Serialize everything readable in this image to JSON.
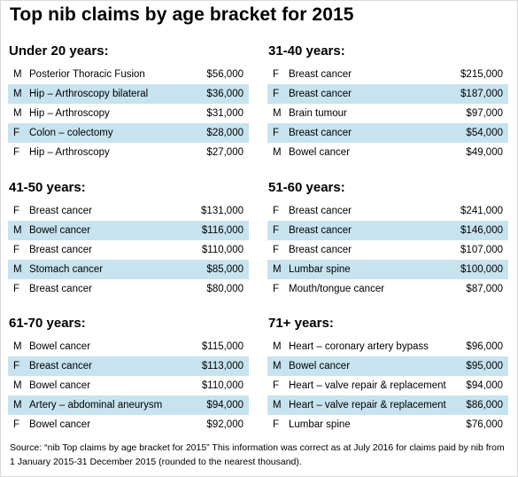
{
  "title": "Top nib claims by age bracket for 2015",
  "brackets": [
    {
      "label": "Under 20 years:",
      "rows": [
        {
          "gender": "M",
          "procedure": "Posterior Thoracic Fusion",
          "amount": "$56,000"
        },
        {
          "gender": "M",
          "procedure": "Hip – Arthroscopy  bilateral",
          "amount": "$36,000"
        },
        {
          "gender": "M",
          "procedure": "Hip – Arthroscopy",
          "amount": "$31,000"
        },
        {
          "gender": "F",
          "procedure": "Colon – colectomy",
          "amount": "$28,000"
        },
        {
          "gender": "F",
          "procedure": "Hip – Arthroscopy",
          "amount": "$27,000"
        }
      ]
    },
    {
      "label": "31-40 years:",
      "rows": [
        {
          "gender": "F",
          "procedure": "Breast cancer",
          "amount": "$215,000"
        },
        {
          "gender": "F",
          "procedure": "Breast cancer",
          "amount": "$187,000"
        },
        {
          "gender": "M",
          "procedure": "Brain tumour",
          "amount": "$97,000"
        },
        {
          "gender": "F",
          "procedure": "Breast cancer",
          "amount": "$54,000"
        },
        {
          "gender": "M",
          "procedure": "Bowel cancer",
          "amount": "$49,000"
        }
      ]
    },
    {
      "label": "41-50 years:",
      "rows": [
        {
          "gender": "F",
          "procedure": "Breast cancer",
          "amount": "$131,000"
        },
        {
          "gender": "M",
          "procedure": "Bowel cancer",
          "amount": "$116,000"
        },
        {
          "gender": "F",
          "procedure": "Breast cancer",
          "amount": "$110,000"
        },
        {
          "gender": "M",
          "procedure": "Stomach cancer",
          "amount": "$85,000"
        },
        {
          "gender": "F",
          "procedure": "Breast cancer",
          "amount": "$80,000"
        }
      ]
    },
    {
      "label": "51-60 years:",
      "rows": [
        {
          "gender": "F",
          "procedure": "Breast cancer",
          "amount": "$241,000"
        },
        {
          "gender": "F",
          "procedure": "Breast cancer",
          "amount": "$146,000"
        },
        {
          "gender": "F",
          "procedure": "Breast cancer",
          "amount": "$107,000"
        },
        {
          "gender": "M",
          "procedure": "Lumbar spine",
          "amount": "$100,000"
        },
        {
          "gender": "F",
          "procedure": "Mouth/tongue  cancer",
          "amount": "$87,000"
        }
      ]
    },
    {
      "label": "61-70 years:",
      "rows": [
        {
          "gender": "M",
          "procedure": "Bowel cancer",
          "amount": "$115,000"
        },
        {
          "gender": "F",
          "procedure": "Breast cancer",
          "amount": "$113,000"
        },
        {
          "gender": "M",
          "procedure": "Bowel cancer",
          "amount": "$110,000"
        },
        {
          "gender": "M",
          "procedure": "Artery – abdominal aneurysm",
          "amount": "$94,000"
        },
        {
          "gender": "F",
          "procedure": "Bowel cancer",
          "amount": "$92,000"
        }
      ]
    },
    {
      "label": "71+ years:",
      "rows": [
        {
          "gender": "M",
          "procedure": "Heart – coronary  artery bypass",
          "amount": "$96,000"
        },
        {
          "gender": "M",
          "procedure": "Bowel cancer",
          "amount": "$95,000"
        },
        {
          "gender": "F",
          "procedure": "Heart – valve repair  & replacement",
          "amount": "$94,000"
        },
        {
          "gender": "M",
          "procedure": "Heart – valve repair  & replacement",
          "amount": "$86,000"
        },
        {
          "gender": "F",
          "procedure": "Lumbar spine",
          "amount": "$76,000"
        }
      ]
    }
  ],
  "source": "Source: “nib Top claims by age bracket for 2015” This information was correct as at July 2016 for claims paid by nib from 1 January 2015-31 December 2015 (rounded to the nearest thousand).",
  "colors": {
    "stripe": "#c6e3ef",
    "background": "#ffffff"
  }
}
